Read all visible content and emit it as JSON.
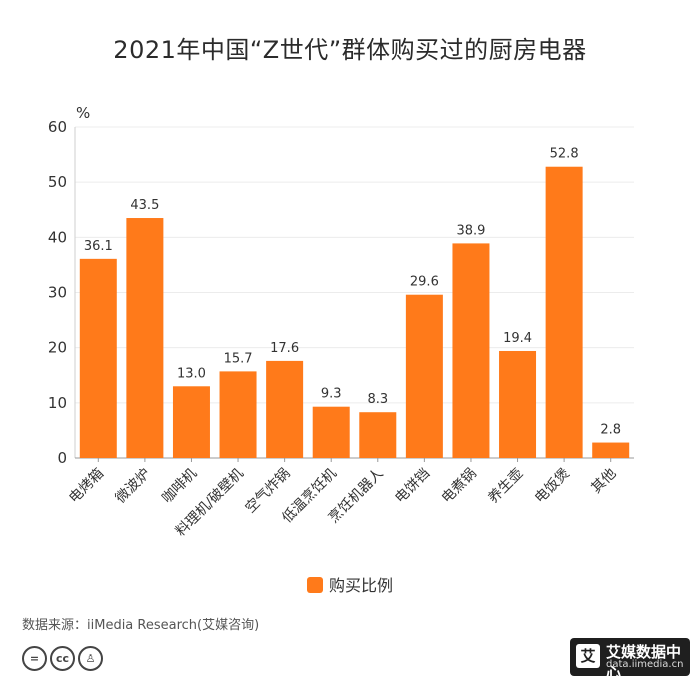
{
  "chart_data": {
    "type": "bar",
    "title": "2021年中国“Z世代”群体购买过的厨房电器",
    "ylabel": "%",
    "ylim": [
      0,
      60
    ],
    "yticks": [
      0,
      10,
      20,
      30,
      40,
      50,
      60
    ],
    "categories": [
      "电烤箱",
      "微波炉",
      "咖啡机",
      "料理机/破壁机",
      "空气炸锅",
      "低温烹饪机",
      "烹饪机器人",
      "电饼铛",
      "电煮锅",
      "养生壶",
      "电饭煲",
      "其他"
    ],
    "values": [
      36.1,
      43.5,
      13.0,
      15.7,
      17.6,
      9.3,
      8.3,
      29.6,
      38.9,
      19.4,
      52.8,
      2.8
    ],
    "value_labels": [
      "36.1",
      "43.5",
      "13.0",
      "15.7",
      "17.6",
      "9.3",
      "8.3",
      "29.6",
      "38.9",
      "19.4",
      "52.8",
      "2.8"
    ],
    "series_name": "购买比例",
    "bar_color": "#FF7A1A",
    "legend_position": "bottom-center"
  },
  "footer": {
    "source": "数据来源：iiMedia Research(艾媒咨询)",
    "cc_icons": [
      "cc-equals-icon",
      "cc-logo-icon",
      "cc-person-icon"
    ],
    "brand_mark": "艾",
    "brand_name": "艾媒数据中心",
    "brand_url": "data.iimedia.cn"
  }
}
